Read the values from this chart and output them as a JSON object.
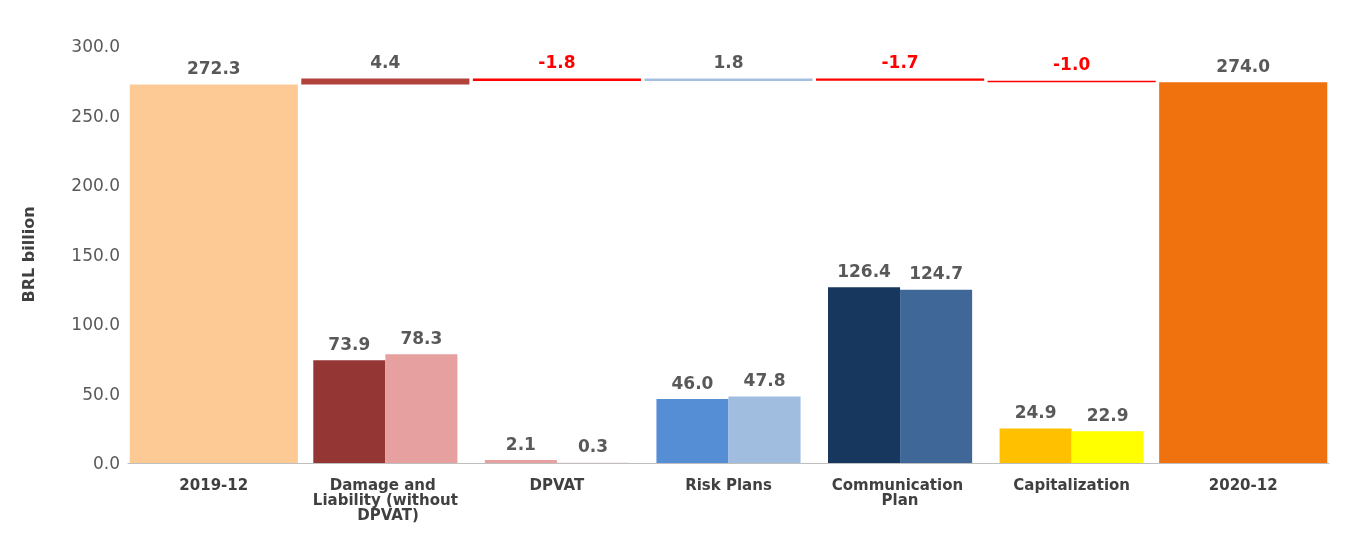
{
  "chart_data": {
    "type": "bar",
    "ylabel": "BRL billion",
    "categories": [
      "2019-12",
      "Damage and Liability (without DPVAT)",
      "DPVAT",
      "Risk Plans",
      "Communication Plan",
      "Capitalization",
      "2020-12"
    ],
    "series": [
      {
        "values": [
          272.3,
          4.4,
          -1.8,
          1.8,
          -1.7,
          -1.0,
          274.0
        ],
        "base": [
          null,
          272.3,
          276.7,
          274.9,
          276.7,
          275.0,
          null
        ],
        "colors": [
          "#fdc995",
          "#b2423c",
          "#ff0000",
          "#a5bfe0",
          "#ff0000",
          "#ff0000",
          "#f0720f"
        ],
        "value_labels": [
          "272.3",
          "4.4",
          "-1.8",
          "1.8",
          "-1.7",
          "-1.0",
          "274.0"
        ]
      },
      {
        "values": [
          null,
          73.9,
          2.1,
          46.0,
          126.4,
          24.9,
          null
        ],
        "colors": [
          null,
          "#943634",
          "#e6a0a0",
          "#558ed5",
          "#17375e",
          "#ffc000",
          null
        ],
        "value_labels": [
          null,
          "73.9",
          "2.1",
          "46.0",
          "126.4",
          "24.9",
          null
        ]
      },
      {
        "values": [
          null,
          78.3,
          0.3,
          47.8,
          124.7,
          22.9,
          null
        ],
        "colors": [
          null,
          "#e6a0a0",
          "#f2dcdb",
          "#a0bde0",
          "#3f6898",
          "#ffff00",
          null
        ],
        "value_labels": [
          null,
          "78.3",
          "0.3",
          "47.8",
          "124.7",
          "22.9",
          null
        ]
      }
    ],
    "ylim": [
      0,
      300
    ],
    "yticks": [
      {
        "value": 0,
        "label": "0.0"
      },
      {
        "value": 50,
        "label": "50.0"
      },
      {
        "value": 100,
        "label": "100.0"
      },
      {
        "value": 150,
        "label": "150.0"
      },
      {
        "value": 200,
        "label": "200.0"
      },
      {
        "value": 250,
        "label": "250.0"
      },
      {
        "value": 300,
        "label": "300.0"
      }
    ]
  }
}
